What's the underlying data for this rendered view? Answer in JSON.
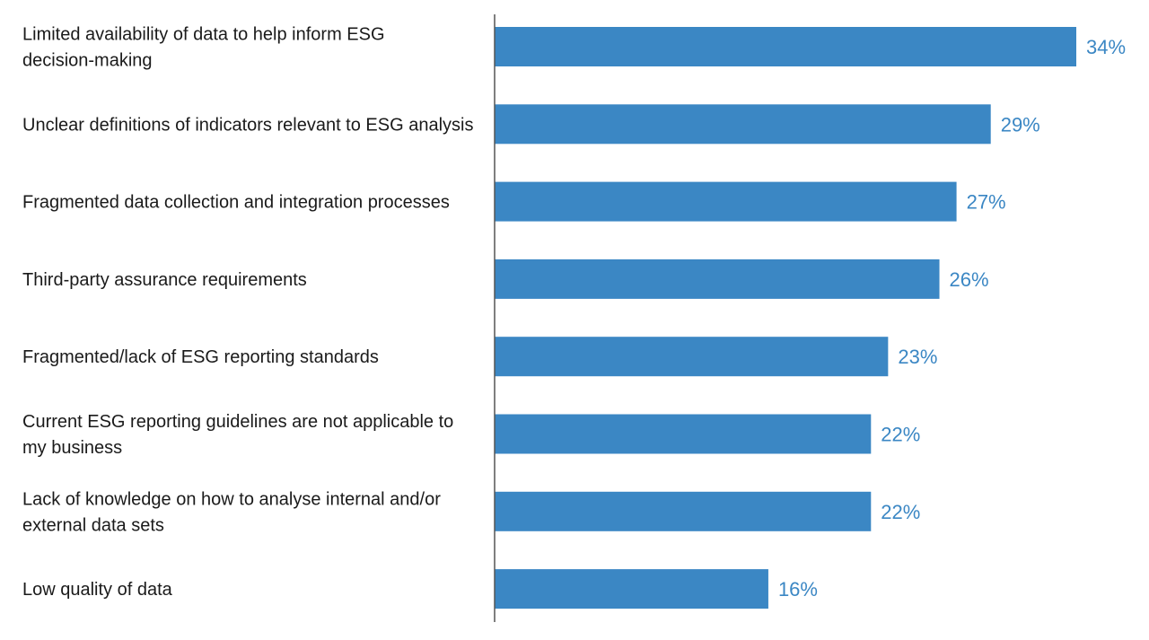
{
  "chart_data": {
    "type": "bar",
    "orientation": "horizontal",
    "categories": [
      [
        "Limited availability of data to help inform ESG",
        "decision-making"
      ],
      [
        "Unclear definitions of indicators relevant to ESG analysis"
      ],
      [
        "Fragmented data collection and integration processes"
      ],
      [
        "Third-party assurance requirements"
      ],
      [
        "Fragmented/lack of ESG reporting standards"
      ],
      [
        "Current ESG reporting guidelines are not applicable to",
        "my business"
      ],
      [
        "Lack of knowledge on how to analyse internal and/or",
        "external data sets"
      ],
      [
        "Low quality of data"
      ]
    ],
    "values": [
      34,
      29,
      27,
      26,
      23,
      22,
      22,
      16
    ],
    "value_labels": [
      "34%",
      "29%",
      "27%",
      "26%",
      "23%",
      "22%",
      "22%",
      "16%"
    ],
    "title": "",
    "xlabel": "",
    "ylabel": "",
    "xlim": [
      0,
      34
    ],
    "grid": false,
    "legend": "none",
    "colors": {
      "bar": "#3b87c4",
      "value_label": "#3b87c4",
      "axis": "#555555",
      "text": "#1a1a1a"
    }
  }
}
